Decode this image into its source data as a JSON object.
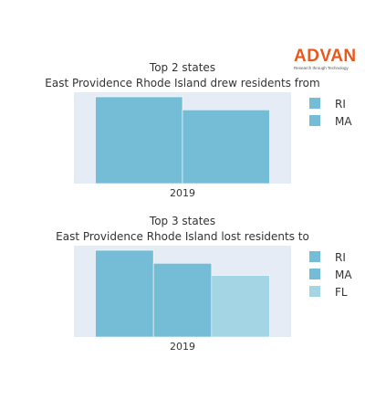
{
  "logo": {
    "wordmark": "ADVAN",
    "tagline": "Research through Technology"
  },
  "chart_data": [
    {
      "type": "bar",
      "title": "Top 2 states",
      "subtitle": "East Providence Rhode Island drew residents from",
      "categories": [
        "2019"
      ],
      "series": [
        {
          "name": "RI",
          "values": [
            100
          ],
          "color": "#75bdd7"
        },
        {
          "name": "MA",
          "values": [
            85
          ],
          "color": "#75bdd7"
        }
      ],
      "ylim": [
        0,
        100
      ],
      "legend": "right"
    },
    {
      "type": "bar",
      "title": "Top 3 states",
      "subtitle": "East Providence Rhode Island lost residents to",
      "categories": [
        "2019"
      ],
      "series": [
        {
          "name": "RI",
          "values": [
            100
          ],
          "color": "#75bdd7"
        },
        {
          "name": "MA",
          "values": [
            85
          ],
          "color": "#75bdd7"
        },
        {
          "name": "FL",
          "values": [
            71
          ],
          "color": "#a3d5e5"
        }
      ],
      "ylim": [
        0,
        100
      ],
      "legend": "right"
    }
  ]
}
